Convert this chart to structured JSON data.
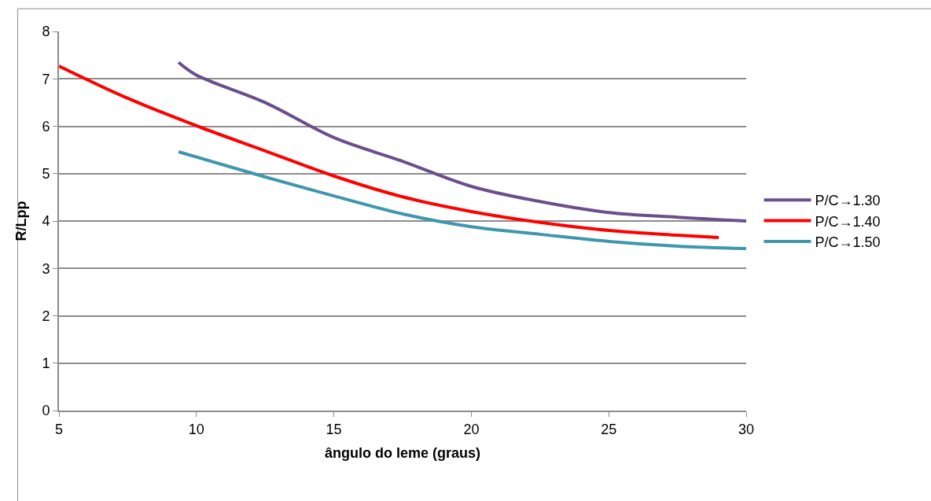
{
  "chart_data": {
    "type": "line",
    "xlabel": "ângulo do leme (graus)",
    "ylabel": "R/Lpp",
    "xlim": [
      5,
      30
    ],
    "xticks": [
      5,
      10,
      15,
      20,
      25,
      30
    ],
    "ylim": [
      0,
      8
    ],
    "yticks": [
      0,
      1,
      2,
      3,
      4,
      5,
      6,
      7,
      8
    ],
    "grid": "y",
    "legend": "right",
    "marker": "none",
    "line_style": "solid",
    "series": [
      {
        "name": "P/C→1.30",
        "color": "#6b4f8c",
        "x": [
          9.35,
          10,
          12.5,
          15,
          17.5,
          20,
          22.5,
          25,
          27.5,
          30
        ],
        "values": [
          7.35,
          7.08,
          6.5,
          5.76,
          5.26,
          4.73,
          4.41,
          4.18,
          4.08,
          4.0
        ]
      },
      {
        "name": "P/C→1.40",
        "color": "#ff0000",
        "x": [
          5,
          7.5,
          10,
          12.5,
          15,
          17.5,
          20,
          22.5,
          25,
          27.5,
          29
        ],
        "values": [
          7.27,
          6.59,
          6.01,
          5.48,
          4.95,
          4.51,
          4.2,
          3.97,
          3.8,
          3.7,
          3.65
        ]
      },
      {
        "name": "P/C→1.50",
        "color": "#3f97ad",
        "x": [
          9.35,
          12.5,
          15,
          17.5,
          20,
          22.5,
          25,
          27.5,
          30
        ],
        "values": [
          5.46,
          4.93,
          4.53,
          4.15,
          3.88,
          3.72,
          3.57,
          3.47,
          3.42
        ]
      }
    ]
  }
}
